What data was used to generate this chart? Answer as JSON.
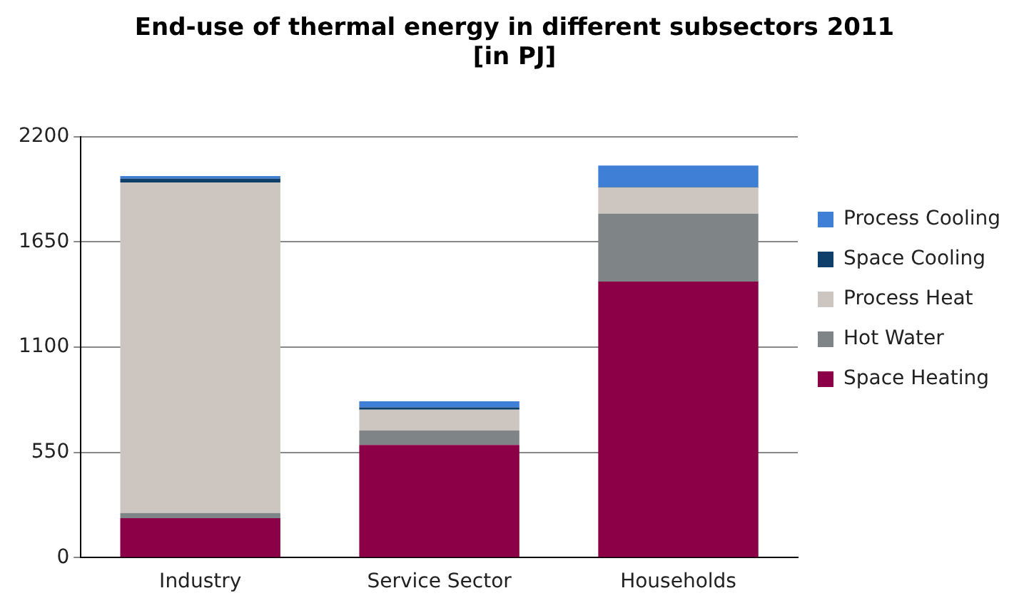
{
  "chart_data": {
    "type": "bar",
    "stacked": true,
    "title": "End-use of thermal energy in different subsectors 2011\n[in PJ]",
    "categories": [
      "Industry",
      "Service Sector",
      "Households"
    ],
    "series": [
      {
        "name": "Space Heating",
        "color": "#8b0046",
        "values": [
          206,
          589,
          1443
        ]
      },
      {
        "name": "Hot Water",
        "color": "#7f8587",
        "values": [
          27,
          75,
          354
        ]
      },
      {
        "name": "Process Heat",
        "color": "#cdc6c0",
        "values": [
          1727,
          109,
          136
        ]
      },
      {
        "name": "Space Cooling",
        "color": "#0e3f6b",
        "values": [
          21,
          12,
          3
        ]
      },
      {
        "name": "Process Cooling",
        "color": "#3f7fd6",
        "values": [
          13,
          32,
          113
        ]
      }
    ],
    "ylim": [
      0,
      2200
    ],
    "yticks": [
      0,
      550,
      1100,
      1650,
      2200
    ],
    "grid": "y",
    "legend": "right"
  }
}
